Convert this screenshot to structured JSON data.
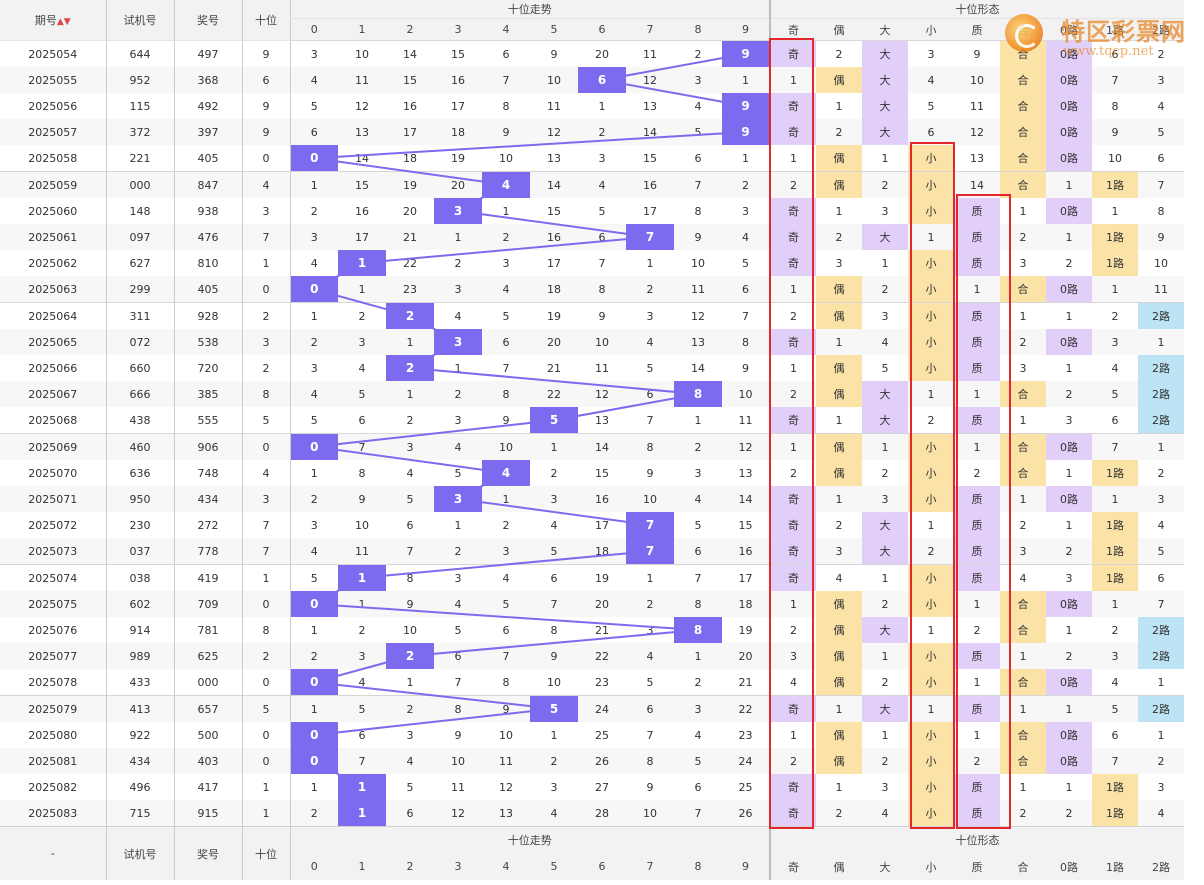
{
  "headers": {
    "period": "期号",
    "trial": "试机号",
    "prize": "奖号",
    "tens": "十位",
    "trend_group": "十位走势",
    "form_group": "十位形态",
    "digits": [
      "0",
      "1",
      "2",
      "3",
      "4",
      "5",
      "6",
      "7",
      "8",
      "9"
    ],
    "forms": [
      "奇",
      "偶",
      "大",
      "小",
      "质",
      "合",
      "0路",
      "1路",
      "2路"
    ]
  },
  "footer": {
    "period": "-"
  },
  "watermark": {
    "brand": "特区彩票网",
    "url": "www.tqcp.net"
  },
  "colors": {
    "hit": "#7c6bee",
    "purple": "#e1cff9",
    "yellow": "#fbe3a7",
    "blue": "#bde4f4",
    "highlight_box": "#e4262d"
  },
  "rows": [
    {
      "period": "2025054",
      "trial": "644",
      "prize": "497",
      "tens": "9",
      "trend": [
        "3",
        "10",
        "14",
        "15",
        "6",
        "9",
        "20",
        "11",
        "2",
        "9"
      ],
      "forms": [
        "奇",
        "2",
        "大",
        "3",
        "9",
        "合",
        "0路",
        "6",
        "2"
      ]
    },
    {
      "period": "2025055",
      "trial": "952",
      "prize": "368",
      "tens": "6",
      "trend": [
        "4",
        "11",
        "15",
        "16",
        "7",
        "10",
        "6",
        "12",
        "3",
        "1"
      ],
      "forms": [
        "1",
        "偶",
        "大",
        "4",
        "10",
        "合",
        "0路",
        "7",
        "3"
      ]
    },
    {
      "period": "2025056",
      "trial": "115",
      "prize": "492",
      "tens": "9",
      "trend": [
        "5",
        "12",
        "16",
        "17",
        "8",
        "11",
        "1",
        "13",
        "4",
        "9"
      ],
      "forms": [
        "奇",
        "1",
        "大",
        "5",
        "11",
        "合",
        "0路",
        "8",
        "4"
      ]
    },
    {
      "period": "2025057",
      "trial": "372",
      "prize": "397",
      "tens": "9",
      "trend": [
        "6",
        "13",
        "17",
        "18",
        "9",
        "12",
        "2",
        "14",
        "5",
        "9"
      ],
      "forms": [
        "奇",
        "2",
        "大",
        "6",
        "12",
        "合",
        "0路",
        "9",
        "5"
      ]
    },
    {
      "period": "2025058",
      "trial": "221",
      "prize": "405",
      "tens": "0",
      "trend": [
        "0",
        "14",
        "18",
        "19",
        "10",
        "13",
        "3",
        "15",
        "6",
        "1"
      ],
      "forms": [
        "1",
        "偶",
        "1",
        "小",
        "13",
        "合",
        "0路",
        "10",
        "6"
      ]
    },
    {
      "period": "2025059",
      "trial": "000",
      "prize": "847",
      "tens": "4",
      "trend": [
        "1",
        "15",
        "19",
        "20",
        "4",
        "14",
        "4",
        "16",
        "7",
        "2"
      ],
      "forms": [
        "2",
        "偶",
        "2",
        "小",
        "14",
        "合",
        "1",
        "1路",
        "7"
      ]
    },
    {
      "period": "2025060",
      "trial": "148",
      "prize": "938",
      "tens": "3",
      "trend": [
        "2",
        "16",
        "20",
        "3",
        "1",
        "15",
        "5",
        "17",
        "8",
        "3"
      ],
      "forms": [
        "奇",
        "1",
        "3",
        "小",
        "质",
        "1",
        "0路",
        "1",
        "8"
      ]
    },
    {
      "period": "2025061",
      "trial": "097",
      "prize": "476",
      "tens": "7",
      "trend": [
        "3",
        "17",
        "21",
        "1",
        "2",
        "16",
        "6",
        "7",
        "9",
        "4"
      ],
      "forms": [
        "奇",
        "2",
        "大",
        "1",
        "质",
        "2",
        "1",
        "1路",
        "9"
      ]
    },
    {
      "period": "2025062",
      "trial": "627",
      "prize": "810",
      "tens": "1",
      "trend": [
        "4",
        "1",
        "22",
        "2",
        "3",
        "17",
        "7",
        "1",
        "10",
        "5"
      ],
      "forms": [
        "奇",
        "3",
        "1",
        "小",
        "质",
        "3",
        "2",
        "1路",
        "10"
      ]
    },
    {
      "period": "2025063",
      "trial": "299",
      "prize": "405",
      "tens": "0",
      "trend": [
        "0",
        "1",
        "23",
        "3",
        "4",
        "18",
        "8",
        "2",
        "11",
        "6"
      ],
      "forms": [
        "1",
        "偶",
        "2",
        "小",
        "1",
        "合",
        "0路",
        "1",
        "11"
      ]
    },
    {
      "period": "2025064",
      "trial": "311",
      "prize": "928",
      "tens": "2",
      "trend": [
        "1",
        "2",
        "2",
        "4",
        "5",
        "19",
        "9",
        "3",
        "12",
        "7"
      ],
      "forms": [
        "2",
        "偶",
        "3",
        "小",
        "质",
        "1",
        "1",
        "2",
        "2路"
      ]
    },
    {
      "period": "2025065",
      "trial": "072",
      "prize": "538",
      "tens": "3",
      "trend": [
        "2",
        "3",
        "1",
        "3",
        "6",
        "20",
        "10",
        "4",
        "13",
        "8"
      ],
      "forms": [
        "奇",
        "1",
        "4",
        "小",
        "质",
        "2",
        "0路",
        "3",
        "1"
      ]
    },
    {
      "period": "2025066",
      "trial": "660",
      "prize": "720",
      "tens": "2",
      "trend": [
        "3",
        "4",
        "2",
        "1",
        "7",
        "21",
        "11",
        "5",
        "14",
        "9"
      ],
      "forms": [
        "1",
        "偶",
        "5",
        "小",
        "质",
        "3",
        "1",
        "4",
        "2路"
      ]
    },
    {
      "period": "2025067",
      "trial": "666",
      "prize": "385",
      "tens": "8",
      "trend": [
        "4",
        "5",
        "1",
        "2",
        "8",
        "22",
        "12",
        "6",
        "8",
        "10"
      ],
      "forms": [
        "2",
        "偶",
        "大",
        "1",
        "1",
        "合",
        "2",
        "5",
        "2路"
      ]
    },
    {
      "period": "2025068",
      "trial": "438",
      "prize": "555",
      "tens": "5",
      "trend": [
        "5",
        "6",
        "2",
        "3",
        "9",
        "5",
        "13",
        "7",
        "1",
        "11"
      ],
      "forms": [
        "奇",
        "1",
        "大",
        "2",
        "质",
        "1",
        "3",
        "6",
        "2路"
      ]
    },
    {
      "period": "2025069",
      "trial": "460",
      "prize": "906",
      "tens": "0",
      "trend": [
        "0",
        "7",
        "3",
        "4",
        "10",
        "1",
        "14",
        "8",
        "2",
        "12"
      ],
      "forms": [
        "1",
        "偶",
        "1",
        "小",
        "1",
        "合",
        "0路",
        "7",
        "1"
      ]
    },
    {
      "period": "2025070",
      "trial": "636",
      "prize": "748",
      "tens": "4",
      "trend": [
        "1",
        "8",
        "4",
        "5",
        "4",
        "2",
        "15",
        "9",
        "3",
        "13"
      ],
      "forms": [
        "2",
        "偶",
        "2",
        "小",
        "2",
        "合",
        "1",
        "1路",
        "2"
      ]
    },
    {
      "period": "2025071",
      "trial": "950",
      "prize": "434",
      "tens": "3",
      "trend": [
        "2",
        "9",
        "5",
        "3",
        "1",
        "3",
        "16",
        "10",
        "4",
        "14"
      ],
      "forms": [
        "奇",
        "1",
        "3",
        "小",
        "质",
        "1",
        "0路",
        "1",
        "3"
      ]
    },
    {
      "period": "2025072",
      "trial": "230",
      "prize": "272",
      "tens": "7",
      "trend": [
        "3",
        "10",
        "6",
        "1",
        "2",
        "4",
        "17",
        "7",
        "5",
        "15"
      ],
      "forms": [
        "奇",
        "2",
        "大",
        "1",
        "质",
        "2",
        "1",
        "1路",
        "4"
      ]
    },
    {
      "period": "2025073",
      "trial": "037",
      "prize": "778",
      "tens": "7",
      "trend": [
        "4",
        "11",
        "7",
        "2",
        "3",
        "5",
        "18",
        "7",
        "6",
        "16"
      ],
      "forms": [
        "奇",
        "3",
        "大",
        "2",
        "质",
        "3",
        "2",
        "1路",
        "5"
      ]
    },
    {
      "period": "2025074",
      "trial": "038",
      "prize": "419",
      "tens": "1",
      "trend": [
        "5",
        "1",
        "8",
        "3",
        "4",
        "6",
        "19",
        "1",
        "7",
        "17"
      ],
      "forms": [
        "奇",
        "4",
        "1",
        "小",
        "质",
        "4",
        "3",
        "1路",
        "6"
      ]
    },
    {
      "period": "2025075",
      "trial": "602",
      "prize": "709",
      "tens": "0",
      "trend": [
        "0",
        "1",
        "9",
        "4",
        "5",
        "7",
        "20",
        "2",
        "8",
        "18"
      ],
      "forms": [
        "1",
        "偶",
        "2",
        "小",
        "1",
        "合",
        "0路",
        "1",
        "7"
      ]
    },
    {
      "period": "2025076",
      "trial": "914",
      "prize": "781",
      "tens": "8",
      "trend": [
        "1",
        "2",
        "10",
        "5",
        "6",
        "8",
        "21",
        "3",
        "8",
        "19"
      ],
      "forms": [
        "2",
        "偶",
        "大",
        "1",
        "2",
        "合",
        "1",
        "2",
        "2路"
      ]
    },
    {
      "period": "2025077",
      "trial": "989",
      "prize": "625",
      "tens": "2",
      "trend": [
        "2",
        "3",
        "2",
        "6",
        "7",
        "9",
        "22",
        "4",
        "1",
        "20"
      ],
      "forms": [
        "3",
        "偶",
        "1",
        "小",
        "质",
        "1",
        "2",
        "3",
        "2路"
      ]
    },
    {
      "period": "2025078",
      "trial": "433",
      "prize": "000",
      "tens": "0",
      "trend": [
        "0",
        "4",
        "1",
        "7",
        "8",
        "10",
        "23",
        "5",
        "2",
        "21"
      ],
      "forms": [
        "4",
        "偶",
        "2",
        "小",
        "1",
        "合",
        "0路",
        "4",
        "1"
      ]
    },
    {
      "period": "2025079",
      "trial": "413",
      "prize": "657",
      "tens": "5",
      "trend": [
        "1",
        "5",
        "2",
        "8",
        "9",
        "5",
        "24",
        "6",
        "3",
        "22"
      ],
      "forms": [
        "奇",
        "1",
        "大",
        "1",
        "质",
        "1",
        "1",
        "5",
        "2路"
      ]
    },
    {
      "period": "2025080",
      "trial": "922",
      "prize": "500",
      "tens": "0",
      "trend": [
        "0",
        "6",
        "3",
        "9",
        "10",
        "1",
        "25",
        "7",
        "4",
        "23"
      ],
      "forms": [
        "1",
        "偶",
        "1",
        "小",
        "1",
        "合",
        "0路",
        "6",
        "1"
      ]
    },
    {
      "period": "2025081",
      "trial": "434",
      "prize": "403",
      "tens": "0",
      "trend": [
        "0",
        "7",
        "4",
        "10",
        "11",
        "2",
        "26",
        "8",
        "5",
        "24"
      ],
      "forms": [
        "2",
        "偶",
        "2",
        "小",
        "2",
        "合",
        "0路",
        "7",
        "2"
      ]
    },
    {
      "period": "2025082",
      "trial": "496",
      "prize": "417",
      "tens": "1",
      "trend": [
        "1",
        "1",
        "5",
        "11",
        "12",
        "3",
        "27",
        "9",
        "6",
        "25"
      ],
      "forms": [
        "奇",
        "1",
        "3",
        "小",
        "质",
        "1",
        "1",
        "1路",
        "3"
      ]
    },
    {
      "period": "2025083",
      "trial": "715",
      "prize": "915",
      "tens": "1",
      "trend": [
        "2",
        "1",
        "6",
        "12",
        "13",
        "4",
        "28",
        "10",
        "7",
        "26"
      ],
      "forms": [
        "奇",
        "2",
        "4",
        "小",
        "质",
        "2",
        "2",
        "1路",
        "4"
      ]
    }
  ]
}
